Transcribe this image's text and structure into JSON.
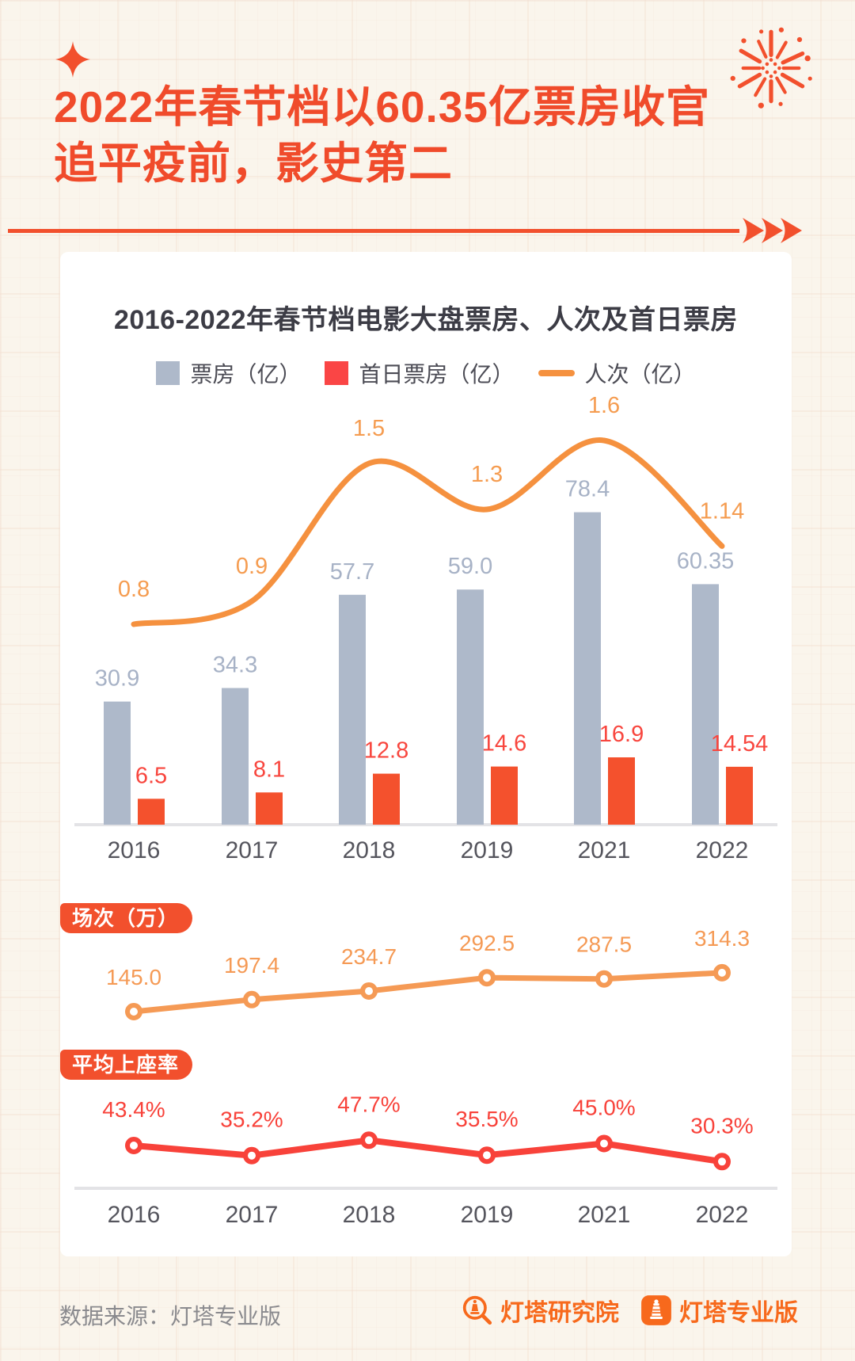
{
  "header": {
    "title_line1": "2022年春节档以60.35亿票房收官",
    "title_line2": "追平疫前，影史第二"
  },
  "colors": {
    "accent_red": "#f2502d",
    "bar_gray": "#aeb9ca",
    "bar_red": "#f4512d",
    "line_orange": "#f5913f",
    "line_red": "#f8423a",
    "axis_gray": "#e3e3e6",
    "card_bg": "#ffffff",
    "page_bg": "#faf5ec"
  },
  "chart_data": [
    {
      "type": "bar",
      "title": "2016-2022年春节档电影大盘票房、人次及首日票房",
      "categories": [
        "2016",
        "2017",
        "2018",
        "2019",
        "2021",
        "2022"
      ],
      "legend_position": "top",
      "grid": false,
      "series": [
        {
          "name": "票房（亿）",
          "type": "bar",
          "color": "#aeb9ca",
          "label_color": "#a7b2c6",
          "values": [
            30.9,
            34.3,
            57.7,
            59.0,
            78.4,
            60.35
          ],
          "labels": [
            "30.9",
            "34.3",
            "57.7",
            "59.0",
            "78.4",
            "60.35"
          ]
        },
        {
          "name": "首日票房（亿）",
          "type": "bar",
          "color": "#f4512d",
          "label_color": "#f8463e",
          "values": [
            6.5,
            8.1,
            12.8,
            14.6,
            16.9,
            14.54
          ],
          "labels": [
            "6.5",
            "8.1",
            "12.8",
            "14.6",
            "16.9",
            "14.54"
          ]
        },
        {
          "name": "人次（亿）",
          "type": "line",
          "color": "#f5913f",
          "label_color": "#f59c50",
          "values": [
            0.8,
            0.9,
            1.5,
            1.3,
            1.6,
            1.14
          ],
          "labels": [
            "0.8",
            "0.9",
            "1.5",
            "1.3",
            "1.6",
            "1.14"
          ]
        }
      ]
    },
    {
      "type": "line",
      "title": "场次（万）",
      "categories": [
        "2016",
        "2017",
        "2018",
        "2019",
        "2021",
        "2022"
      ],
      "color": "#f59a55",
      "values": [
        145.0,
        197.4,
        234.7,
        292.5,
        287.5,
        314.3
      ],
      "labels": [
        "145.0",
        "197.4",
        "234.7",
        "292.5",
        "287.5",
        "314.3"
      ]
    },
    {
      "type": "line",
      "title": "平均上座率",
      "categories": [
        "2016",
        "2017",
        "2018",
        "2019",
        "2021",
        "2022"
      ],
      "color": "#f8423a",
      "values": [
        43.4,
        35.2,
        47.7,
        35.5,
        45.0,
        30.3
      ],
      "labels": [
        "43.4%",
        "35.2%",
        "47.7%",
        "35.5%",
        "45.0%",
        "30.3%"
      ]
    }
  ],
  "footer": {
    "source": "数据来源：灯塔专业版",
    "logos": [
      "灯塔研究院",
      "灯塔专业版"
    ]
  }
}
